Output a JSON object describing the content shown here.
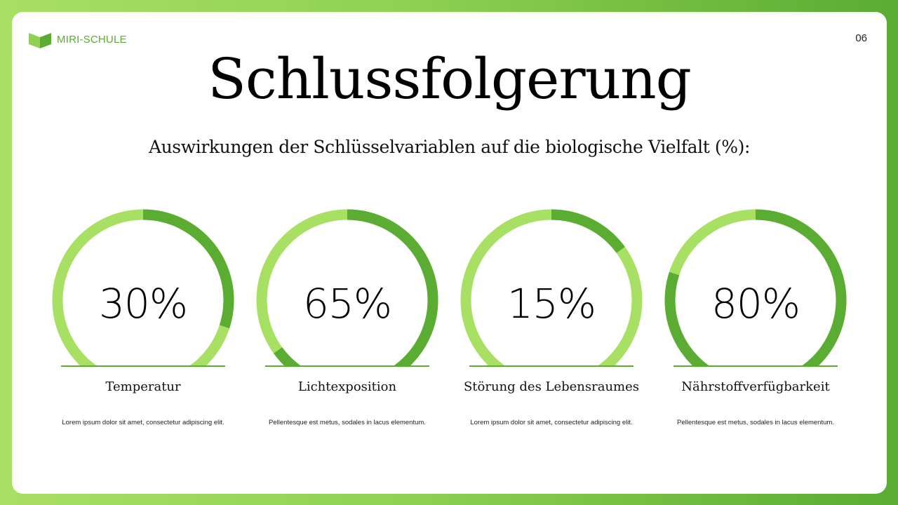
{
  "brand": {
    "name": "MIRI-SCHULE",
    "icon": "cube-logo-icon"
  },
  "page_number": "06",
  "title": "Schlussfolgerung",
  "subtitle": "Auswirkungen der Schlüsselvariablen auf die biologische Vielfalt (%):",
  "colors": {
    "accent": "#5aac32",
    "track": "#a8e063",
    "background_start": "#a8e063",
    "background_end": "#5aac32"
  },
  "items": [
    {
      "value_label": "30%",
      "label": "Temperatur",
      "description": "Lorem ipsum dolor sit amet, consectetur adipiscing elit."
    },
    {
      "value_label": "65%",
      "label": "Lichtexposition",
      "description": "Pellentesque est metus, sodales in lacus elementum."
    },
    {
      "value_label": "15%",
      "label": "Störung des Lebensraumes",
      "description": "Lorem ipsum dolor sit amet, consectetur adipiscing elit."
    },
    {
      "value_label": "80%",
      "label": "Nährstoffverfügbarkeit",
      "description": "Pellentesque est metus, sodales in lacus elementum."
    }
  ],
  "chart_data": {
    "type": "pie",
    "subtype": "progress-rings",
    "title": "Auswirkungen der Schlüsselvariablen auf die biologische Vielfalt (%):",
    "categories": [
      "Temperatur",
      "Lichtexposition",
      "Störung des Lebensraumes",
      "Nährstoffverfügbarkeit"
    ],
    "values": [
      30,
      65,
      15,
      80
    ],
    "unit": "%",
    "max": 100,
    "legend": "none"
  }
}
